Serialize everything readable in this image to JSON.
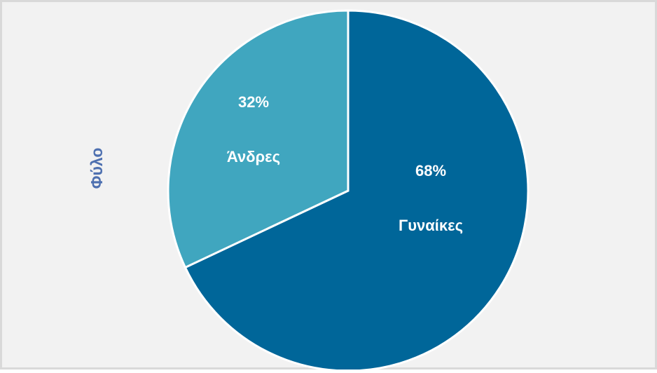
{
  "chart_data": {
    "type": "pie",
    "title": "Φύλο",
    "categories": [
      "Γυναίκες",
      "Άνδρες"
    ],
    "values": [
      68,
      32
    ],
    "value_labels": [
      "68%",
      "32%"
    ],
    "colors": [
      "#006699",
      "#40a6bf"
    ]
  }
}
